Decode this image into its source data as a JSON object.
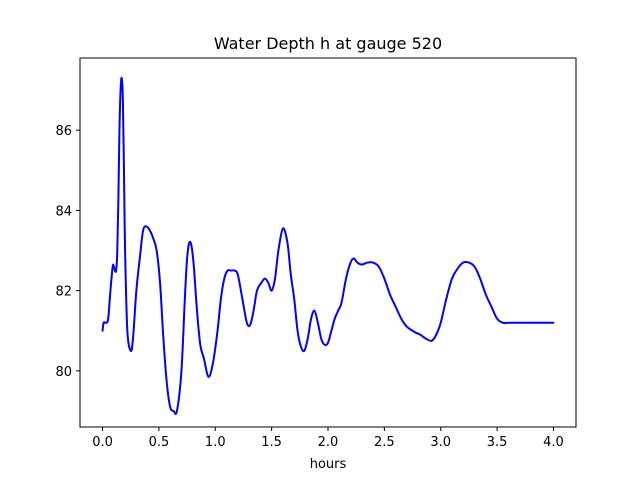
{
  "chart_data": {
    "type": "line",
    "title": "Water Depth h at gauge 520",
    "xlabel": "hours",
    "ylabel": "",
    "xlim": [
      -0.2,
      4.2
    ],
    "ylim": [
      78.6,
      87.8
    ],
    "x_ticks": [
      0.0,
      0.5,
      1.0,
      1.5,
      2.0,
      2.5,
      3.0,
      3.5,
      4.0
    ],
    "x_tick_labels": [
      "0.0",
      "0.5",
      "1.0",
      "1.5",
      "2.0",
      "2.5",
      "3.0",
      "3.5",
      "4.0"
    ],
    "y_ticks": [
      80,
      82,
      84,
      86
    ],
    "y_tick_labels": [
      "80",
      "82",
      "84",
      "86"
    ],
    "grid": false,
    "series": [
      {
        "color": "#0000ff",
        "x": [
          0.0,
          0.01,
          0.03,
          0.05,
          0.07,
          0.09,
          0.1,
          0.11,
          0.12,
          0.13,
          0.14,
          0.15,
          0.16,
          0.17,
          0.18,
          0.19,
          0.2,
          0.22,
          0.25,
          0.27,
          0.3,
          0.33,
          0.36,
          0.39,
          0.42,
          0.45,
          0.48,
          0.51,
          0.54,
          0.57,
          0.6,
          0.63,
          0.66,
          0.7,
          0.73,
          0.75,
          0.77,
          0.79,
          0.81,
          0.83,
          0.85,
          0.87,
          0.9,
          0.94,
          0.98,
          1.02,
          1.05,
          1.08,
          1.11,
          1.14,
          1.17,
          1.2,
          1.24,
          1.28,
          1.31,
          1.34,
          1.37,
          1.41,
          1.44,
          1.47,
          1.5,
          1.53,
          1.56,
          1.6,
          1.64,
          1.67,
          1.7,
          1.73,
          1.76,
          1.79,
          1.82,
          1.85,
          1.88,
          1.91,
          1.94,
          1.97,
          2.0,
          2.03,
          2.06,
          2.09,
          2.12,
          2.16,
          2.2,
          2.23,
          2.26,
          2.3,
          2.35,
          2.4,
          2.45,
          2.5,
          2.55,
          2.6,
          2.65,
          2.7,
          2.75,
          2.78,
          2.82,
          2.87,
          2.92,
          2.96,
          3.0,
          3.05,
          3.1,
          3.15,
          3.2,
          3.25,
          3.3,
          3.35,
          3.4,
          3.45,
          3.5,
          3.55,
          3.6,
          3.65,
          3.7,
          3.75,
          3.8,
          3.85,
          3.9,
          3.95,
          4.0
        ],
        "values": [
          81.0,
          81.2,
          81.2,
          81.3,
          82.0,
          82.6,
          82.6,
          82.5,
          82.5,
          82.9,
          84.2,
          86.0,
          87.0,
          87.3,
          86.8,
          85.0,
          83.0,
          81.0,
          80.5,
          80.8,
          82.0,
          82.8,
          83.5,
          83.6,
          83.5,
          83.3,
          83.0,
          82.2,
          80.8,
          79.7,
          79.1,
          79.0,
          79.0,
          80.0,
          81.8,
          82.8,
          83.2,
          83.1,
          82.6,
          81.8,
          81.1,
          80.6,
          80.3,
          79.85,
          80.2,
          81.0,
          81.8,
          82.3,
          82.5,
          82.5,
          82.5,
          82.4,
          81.8,
          81.2,
          81.15,
          81.5,
          82.0,
          82.2,
          82.3,
          82.2,
          82.0,
          82.3,
          83.0,
          83.55,
          83.2,
          82.4,
          81.8,
          81.0,
          80.6,
          80.5,
          80.8,
          81.3,
          81.5,
          81.2,
          80.8,
          80.65,
          80.7,
          81.0,
          81.3,
          81.5,
          81.7,
          82.3,
          82.7,
          82.8,
          82.7,
          82.65,
          82.7,
          82.7,
          82.6,
          82.3,
          81.9,
          81.6,
          81.3,
          81.1,
          81.0,
          80.95,
          80.9,
          80.8,
          80.75,
          80.9,
          81.2,
          81.8,
          82.3,
          82.55,
          82.7,
          82.7,
          82.6,
          82.3,
          81.9,
          81.6,
          81.3,
          81.2,
          81.2,
          81.2,
          81.2,
          81.2,
          81.2,
          81.2,
          81.2,
          81.2,
          81.2
        ]
      }
    ]
  }
}
